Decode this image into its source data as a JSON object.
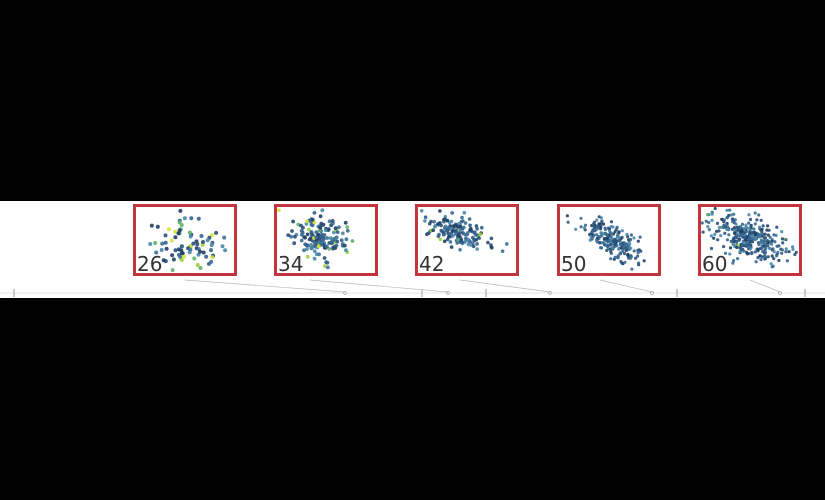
{
  "panels": [
    {
      "label": "26",
      "cluster": "sparse-yellow"
    },
    {
      "label": "34",
      "cluster": "medium"
    },
    {
      "label": "42",
      "cluster": "elongated"
    },
    {
      "label": "50",
      "cluster": "diagonal"
    },
    {
      "label": "60",
      "cluster": "dense"
    }
  ],
  "colors": {
    "frame": "#c4343c",
    "points": [
      "#2a4f7a",
      "#345f8c",
      "#1f3f63",
      "#3b6f96",
      "#4a88a8"
    ],
    "highlight": [
      "#d7e23a",
      "#9ccf3c",
      "#5fb16a"
    ]
  }
}
